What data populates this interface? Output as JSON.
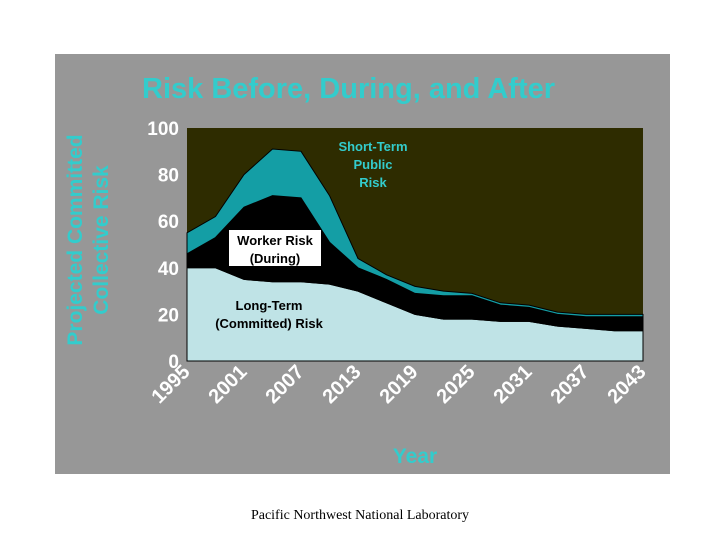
{
  "footer": "Pacific Northwest National Laboratory",
  "chart_data": {
    "type": "area",
    "stacked": true,
    "title": "Risk Before, During, and After",
    "xlabel": "Year",
    "ylabel": "Projected Committed Collective Risk",
    "xlim": [
      1995,
      2043
    ],
    "ylim": [
      0,
      100
    ],
    "x_ticks": [
      1995,
      2001,
      2007,
      2013,
      2019,
      2025,
      2031,
      2037,
      2043
    ],
    "y_ticks": [
      0,
      20,
      40,
      60,
      80,
      100
    ],
    "x": [
      1995,
      1998,
      2001,
      2004,
      2007,
      2010,
      2013,
      2016,
      2019,
      2022,
      2025,
      2028,
      2031,
      2034,
      2037,
      2040,
      2043
    ],
    "series": [
      {
        "name": "Long-Term (Committed) Risk",
        "color": "#bfe3e6",
        "values": [
          40,
          40,
          35,
          34,
          34,
          33,
          30,
          25,
          20,
          18,
          18,
          17,
          17,
          15,
          14,
          13,
          13
        ]
      },
      {
        "name": "Worker Risk (During)",
        "color": "#000000",
        "values": [
          6,
          13,
          31,
          37,
          36,
          18,
          10,
          10,
          9,
          10,
          10,
          7,
          6,
          5,
          5,
          6,
          6
        ]
      },
      {
        "name": "Short-Term Public Risk",
        "color": "#149ea5",
        "values": [
          9,
          9,
          14,
          20,
          20,
          20,
          4,
          2,
          3,
          2,
          1,
          1,
          1,
          1,
          1,
          1,
          1
        ]
      }
    ],
    "annotations": [
      {
        "label_lines": [
          "Short-Term",
          "Public",
          "Risk"
        ],
        "color": "#33cccc"
      },
      {
        "label_lines": [
          "Worker Risk",
          "(During)"
        ],
        "color": "#000000",
        "boxed": true
      },
      {
        "label_lines": [
          "Long-Term",
          "(Committed) Risk"
        ],
        "color": "#000000"
      }
    ],
    "colors": {
      "panel": "#979797",
      "plot_background": "#2e2c00",
      "title": "#33cccc",
      "ylabel": "#33cccc",
      "xlabel": "#33cccc",
      "ticks": "#ffffff"
    },
    "grid": false,
    "legend": "none"
  }
}
